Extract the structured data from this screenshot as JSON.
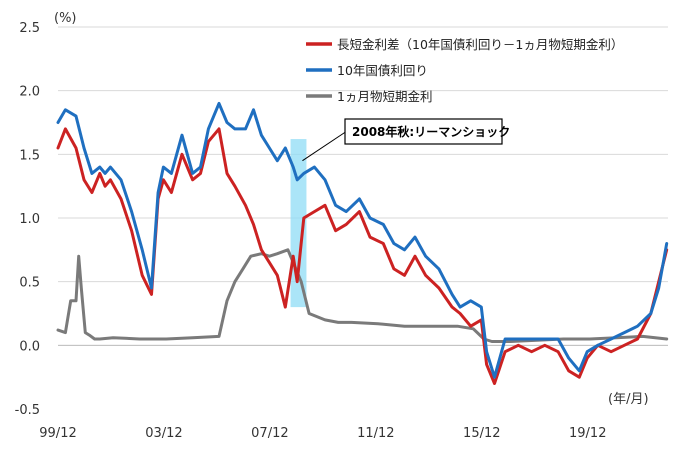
{
  "chart_data": {
    "type": "line",
    "ylabel": "(%)",
    "xlabel": "(年/月)",
    "ylim": [
      -0.5,
      2.5
    ],
    "yticks": [
      "2.5",
      "2.0",
      "1.5",
      "1.0",
      "0.5",
      "0.0",
      "-0.5"
    ],
    "xticks": [
      "99/12",
      "03/12",
      "07/12",
      "11/12",
      "15/12",
      "19/12"
    ],
    "grid": true,
    "legend_position": "top-right",
    "annotation": {
      "text": "2008年秋:リーマンショック",
      "x_start": 2008.7,
      "x_end": 2009.3
    },
    "series": [
      {
        "name": "長短金利差（10年国債利回り－1ヵ月物短期金利）",
        "color": "#cc2222",
        "x": [
          1999.92,
          2000.2,
          2000.6,
          2000.9,
          2001.2,
          2001.5,
          2001.7,
          2001.9,
          2002.3,
          2002.7,
          2003.1,
          2003.45,
          2003.7,
          2003.9,
          2004.2,
          2004.6,
          2005.0,
          2005.3,
          2005.6,
          2006.0,
          2006.3,
          2006.6,
          2007.0,
          2007.3,
          2007.6,
          2007.9,
          2008.2,
          2008.5,
          2008.8,
          2008.95,
          2009.2,
          2009.6,
          2010.0,
          2010.4,
          2010.8,
          2011.3,
          2011.7,
          2012.2,
          2012.6,
          2013.0,
          2013.4,
          2013.8,
          2014.3,
          2014.8,
          2015.1,
          2015.5,
          2015.9,
          2016.1,
          2016.4,
          2016.8,
          2017.3,
          2017.8,
          2018.3,
          2018.8,
          2019.2,
          2019.6,
          2019.9,
          2020.3,
          2020.8,
          2021.3,
          2021.8,
          2022.3,
          2022.6,
          2022.9
        ],
        "values": [
          1.55,
          1.7,
          1.55,
          1.3,
          1.2,
          1.35,
          1.25,
          1.3,
          1.15,
          0.9,
          0.55,
          0.4,
          1.15,
          1.3,
          1.2,
          1.5,
          1.3,
          1.35,
          1.6,
          1.7,
          1.35,
          1.25,
          1.1,
          0.95,
          0.75,
          0.65,
          0.55,
          0.3,
          0.7,
          0.5,
          1.0,
          1.05,
          1.1,
          0.9,
          0.95,
          1.05,
          0.85,
          0.8,
          0.6,
          0.55,
          0.7,
          0.55,
          0.45,
          0.3,
          0.25,
          0.15,
          0.2,
          -0.15,
          -0.3,
          -0.05,
          0.0,
          -0.05,
          0.0,
          -0.05,
          -0.2,
          -0.25,
          -0.1,
          0.0,
          -0.05,
          0.0,
          0.05,
          0.25,
          0.5,
          0.75
        ]
      },
      {
        "name": "10年国債利回り",
        "color": "#1f6fc0",
        "x": [
          1999.92,
          2000.2,
          2000.6,
          2000.9,
          2001.2,
          2001.5,
          2001.7,
          2001.9,
          2002.3,
          2002.7,
          2003.1,
          2003.45,
          2003.7,
          2003.9,
          2004.2,
          2004.6,
          2005.0,
          2005.3,
          2005.6,
          2006.0,
          2006.3,
          2006.6,
          2007.0,
          2007.3,
          2007.6,
          2007.9,
          2008.2,
          2008.5,
          2008.8,
          2008.95,
          2009.2,
          2009.6,
          2010.0,
          2010.4,
          2010.8,
          2011.3,
          2011.7,
          2012.2,
          2012.6,
          2013.0,
          2013.4,
          2013.8,
          2014.3,
          2014.8,
          2015.1,
          2015.5,
          2015.9,
          2016.1,
          2016.4,
          2016.8,
          2017.3,
          2017.8,
          2018.3,
          2018.8,
          2019.2,
          2019.6,
          2019.9,
          2020.3,
          2020.8,
          2021.3,
          2021.8,
          2022.3,
          2022.6,
          2022.9
        ],
        "values": [
          1.75,
          1.85,
          1.8,
          1.55,
          1.35,
          1.4,
          1.35,
          1.4,
          1.3,
          1.05,
          0.75,
          0.45,
          1.2,
          1.4,
          1.35,
          1.65,
          1.35,
          1.4,
          1.7,
          1.9,
          1.75,
          1.7,
          1.7,
          1.85,
          1.65,
          1.55,
          1.45,
          1.55,
          1.4,
          1.3,
          1.35,
          1.4,
          1.3,
          1.1,
          1.05,
          1.15,
          1.0,
          0.95,
          0.8,
          0.75,
          0.85,
          0.7,
          0.6,
          0.4,
          0.3,
          0.35,
          0.3,
          -0.05,
          -0.25,
          0.05,
          0.05,
          0.05,
          0.05,
          0.05,
          -0.1,
          -0.2,
          -0.05,
          0.0,
          0.05,
          0.1,
          0.15,
          0.25,
          0.45,
          0.8
        ]
      },
      {
        "name": "1ヵ月物短期金利",
        "color": "#7a7a7a",
        "x": [
          1999.92,
          2000.2,
          2000.4,
          2000.6,
          2000.7,
          2000.8,
          2000.95,
          2001.1,
          2001.3,
          2001.5,
          2002.0,
          2003.0,
          2004.0,
          2005.0,
          2006.0,
          2006.3,
          2006.6,
          2006.9,
          2007.2,
          2007.6,
          2007.9,
          2008.2,
          2008.6,
          2008.9,
          2009.1,
          2009.4,
          2010.0,
          2010.5,
          2011.0,
          2012.0,
          2013.0,
          2014.0,
          2015.0,
          2015.6,
          2016.0,
          2016.3,
          2017.0,
          2018.0,
          2019.0,
          2020.0,
          2021.0,
          2022.0,
          2022.9
        ],
        "values": [
          0.12,
          0.1,
          0.35,
          0.35,
          0.7,
          0.45,
          0.1,
          0.08,
          0.05,
          0.05,
          0.06,
          0.05,
          0.05,
          0.06,
          0.07,
          0.35,
          0.5,
          0.6,
          0.7,
          0.72,
          0.7,
          0.72,
          0.75,
          0.6,
          0.5,
          0.25,
          0.2,
          0.18,
          0.18,
          0.17,
          0.15,
          0.15,
          0.15,
          0.13,
          0.05,
          0.03,
          0.03,
          0.04,
          0.05,
          0.05,
          0.06,
          0.07,
          0.05
        ]
      }
    ]
  }
}
